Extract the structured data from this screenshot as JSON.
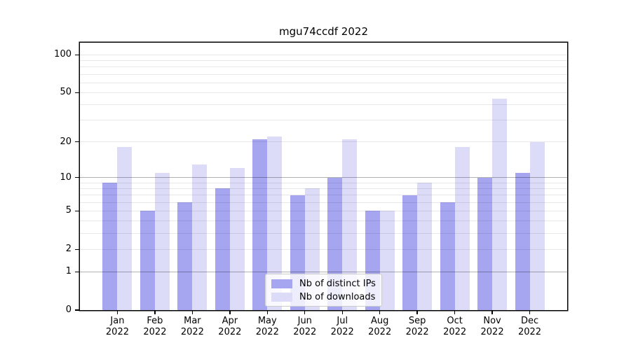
{
  "title": "mgu74ccdf 2022",
  "colors": {
    "ips": "#a5a5f0",
    "downloads": "#dcdcf8",
    "axis": "#000000",
    "text": "#000000",
    "grid_minor": "rgba(0,0,0,0.09)",
    "grid_major": "rgba(0,0,0,0.30)",
    "legend_border": "#cccccc",
    "legend_bg": "rgba(255,255,255,0.8)"
  },
  "legend": {
    "items": [
      {
        "key": "ips",
        "label": "Nb of distinct IPs"
      },
      {
        "key": "downloads",
        "label": "Nb of downloads"
      }
    ]
  },
  "chart_data": {
    "type": "bar",
    "title": "mgu74ccdf 2022",
    "categories": [
      "Jan",
      "Feb",
      "Mar",
      "Apr",
      "May",
      "Jun",
      "Jul",
      "Aug",
      "Sep",
      "Oct",
      "Nov",
      "Dec"
    ],
    "x_year": "2022",
    "series": [
      {
        "key": "ips",
        "name": "Nb of distinct IPs",
        "values": [
          9,
          5,
          6,
          8,
          21,
          7,
          10,
          5,
          7,
          6,
          10,
          11
        ]
      },
      {
        "key": "downloads",
        "name": "Nb of downloads",
        "values": [
          18,
          11,
          13,
          12,
          22,
          8,
          21,
          5,
          9,
          18,
          45,
          20
        ]
      }
    ],
    "yticks": [
      100,
      50,
      20,
      10,
      5,
      2,
      1,
      0
    ],
    "gridlines": {
      "major": [
        1,
        10
      ],
      "minor": [
        2,
        3,
        4,
        5,
        6,
        7,
        8,
        9,
        20,
        30,
        40,
        50,
        60,
        70,
        80,
        90,
        100
      ]
    },
    "scale": "log1p",
    "ylim": [
      0,
      125
    ],
    "grid": true,
    "xlabel": "",
    "ylabel": "",
    "legend_position": "lower-center"
  }
}
